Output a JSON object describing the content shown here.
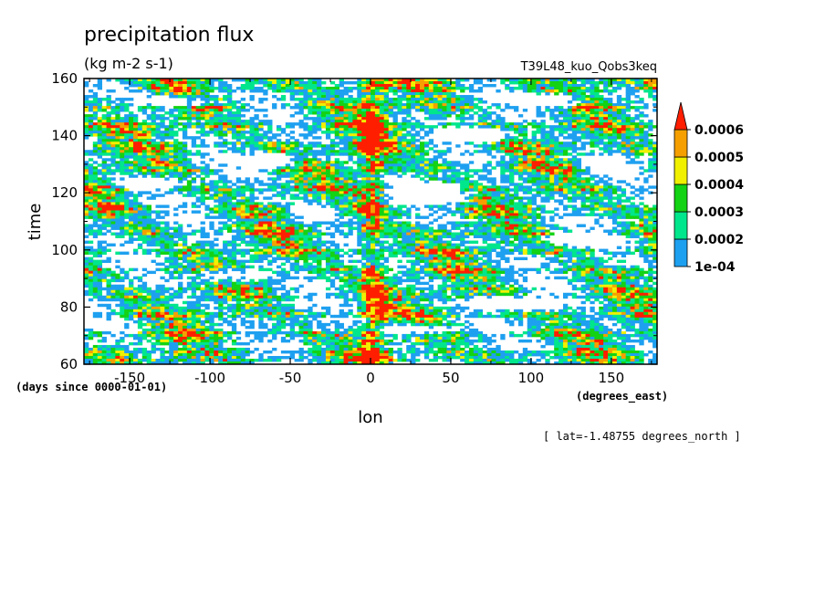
{
  "chart_data": {
    "type": "heatmap",
    "title": "precipitation flux",
    "units": "(kg m-2 s-1)",
    "dataset_label": "T39L48_kuo_Qobs3keq",
    "xlabel": "lon",
    "x_units": "(degrees_east)",
    "ylabel": "time",
    "y_units": "(days since 0000-01-01)",
    "subtitle_note": "[ lat=-1.48755 degrees_north ]",
    "xlim": [
      -178.5,
      178.5
    ],
    "ylim": [
      60,
      160
    ],
    "x_ticks": [
      -150,
      -100,
      -50,
      0,
      50,
      100,
      150
    ],
    "x_tick_labels": [
      "-150",
      "-100",
      "-50",
      "0",
      "50",
      "100",
      "150"
    ],
    "y_ticks": [
      60,
      80,
      100,
      120,
      140,
      160
    ],
    "y_tick_labels": [
      "60",
      "80",
      "100",
      "120",
      "140",
      "160"
    ],
    "colorbar": {
      "levels": [
        0.0001,
        0.0002,
        0.0003,
        0.0004,
        0.0005,
        0.0006
      ],
      "level_labels": [
        "1e-04",
        "0.0002",
        "0.0003",
        "0.0004",
        "0.0005",
        "0.0006"
      ],
      "colors": [
        "#1ea0f0",
        "#00e68c",
        "#14d214",
        "#f0f000",
        "#f5a000",
        "#ff1e00"
      ],
      "extend": "max"
    },
    "grid": false
  }
}
